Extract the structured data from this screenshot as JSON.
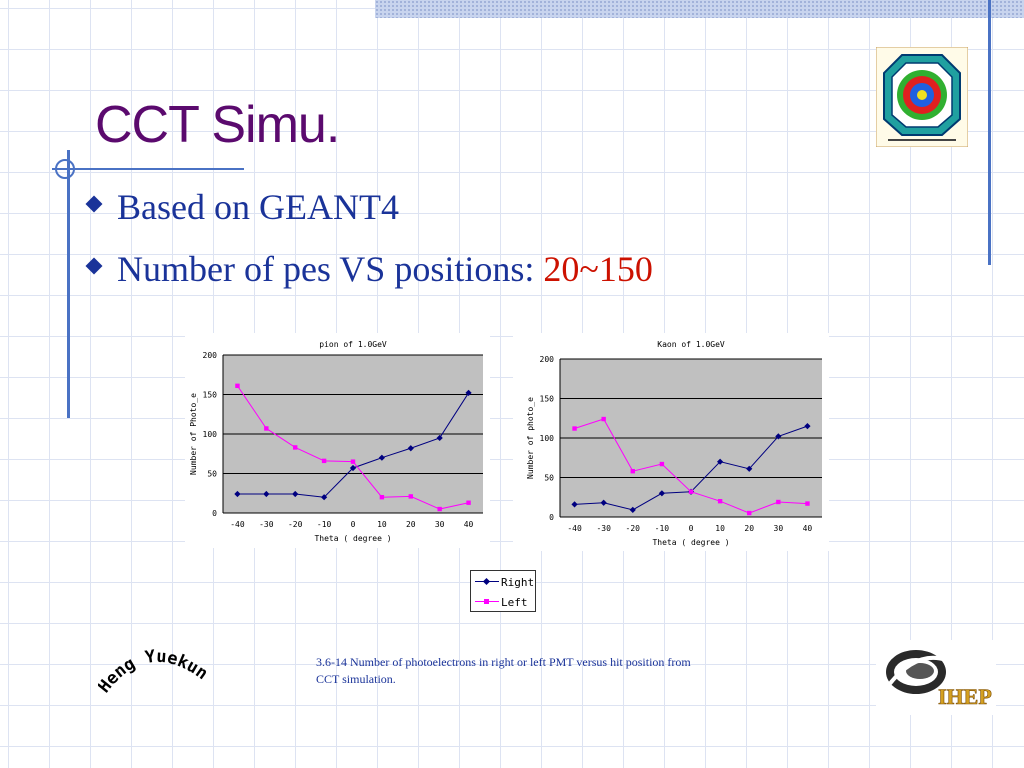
{
  "slide": {
    "title": "CCT Simu.",
    "bullets": [
      {
        "text": "Based on GEANT4"
      },
      {
        "text": "Number of pes VS positions: ",
        "highlight": "20~150"
      }
    ],
    "caption": "3.6-14 Number of photoelectrons in right or left PMT versus hit position from CCT simulation.",
    "author": "Heng Yuekun",
    "logo_text": "IHEP",
    "legend": {
      "right": "Right",
      "left": "Left"
    },
    "colors": {
      "title": "#5b0a6e",
      "bullet": "#1a3399",
      "highlight": "#cc1100",
      "right_series": "#000080",
      "left_series": "#ff00ff",
      "plot_bg": "#c0c0c0"
    }
  },
  "chart_data": [
    {
      "type": "line",
      "title": "pion of 1.0GeV",
      "xlabel": "Theta ( degree )",
      "ylabel": "Number of Photo_e",
      "x": [
        -40,
        -30,
        -20,
        -10,
        0,
        10,
        20,
        30,
        40
      ],
      "ylim": [
        0,
        200
      ],
      "yticks": [
        0,
        50,
        100,
        150,
        200
      ],
      "series": [
        {
          "name": "Right",
          "values": [
            24,
            24,
            24,
            20,
            57,
            70,
            82,
            95,
            152
          ]
        },
        {
          "name": "Left",
          "values": [
            161,
            107,
            83,
            66,
            65,
            20,
            21,
            5,
            13
          ]
        }
      ]
    },
    {
      "type": "line",
      "title": "Kaon of 1.0GeV",
      "xlabel": "Theta ( degree )",
      "ylabel": "Number of photo_e",
      "x": [
        -40,
        -30,
        -20,
        -10,
        0,
        10,
        20,
        30,
        40
      ],
      "ylim": [
        0,
        200
      ],
      "yticks": [
        0,
        50,
        100,
        150,
        200
      ],
      "series": [
        {
          "name": "Right",
          "values": [
            16,
            18,
            9,
            30,
            32,
            70,
            61,
            102,
            115
          ]
        },
        {
          "name": "Left",
          "values": [
            112,
            124,
            58,
            67,
            32,
            20,
            5,
            19,
            17
          ]
        }
      ]
    }
  ]
}
